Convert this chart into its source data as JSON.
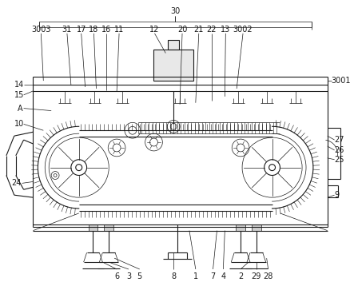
{
  "fig_width": 4.43,
  "fig_height": 3.63,
  "dpi": 100,
  "bg_color": "#ffffff",
  "line_color": "#1a1a1a",
  "lw": 0.8,
  "tlw": 0.5,
  "fs": 7.0
}
